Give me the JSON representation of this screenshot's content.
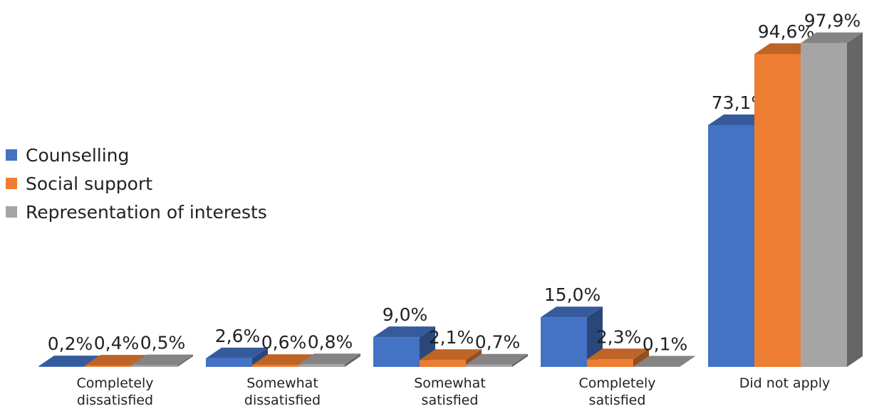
{
  "chart_data": {
    "type": "bar",
    "categories": [
      [
        "Completely",
        "dissatisfied"
      ],
      [
        "Somewhat",
        "dissatisfied"
      ],
      [
        "Somewhat",
        "satisfied"
      ],
      [
        "Completely",
        "satisfied"
      ],
      [
        "Did not apply"
      ]
    ],
    "series": [
      {
        "name": "Counselling",
        "values": [
          0.2,
          2.6,
          9.0,
          15.0,
          73.1
        ],
        "labels": [
          "0,2%",
          "2,6%",
          "9,0%",
          "15,0%",
          "73,1%"
        ],
        "color": "#4472C4"
      },
      {
        "name": "Social support",
        "values": [
          0.4,
          0.6,
          2.1,
          2.3,
          94.6
        ],
        "labels": [
          "0,4%",
          "0,6%",
          "2,1%",
          "2,3%",
          "94,6%"
        ],
        "color": "#ED7D31"
      },
      {
        "name": "Representation of interests",
        "values": [
          0.5,
          0.8,
          0.7,
          0.1,
          97.9
        ],
        "labels": [
          "0,5%",
          "0,8%",
          "0,7%",
          "0,1%",
          "97,9%"
        ],
        "color": "#A5A5A5"
      }
    ],
    "ylim": [
      0,
      100
    ],
    "legend_position": "left",
    "grid": false,
    "style": "3d-clustered-column"
  }
}
